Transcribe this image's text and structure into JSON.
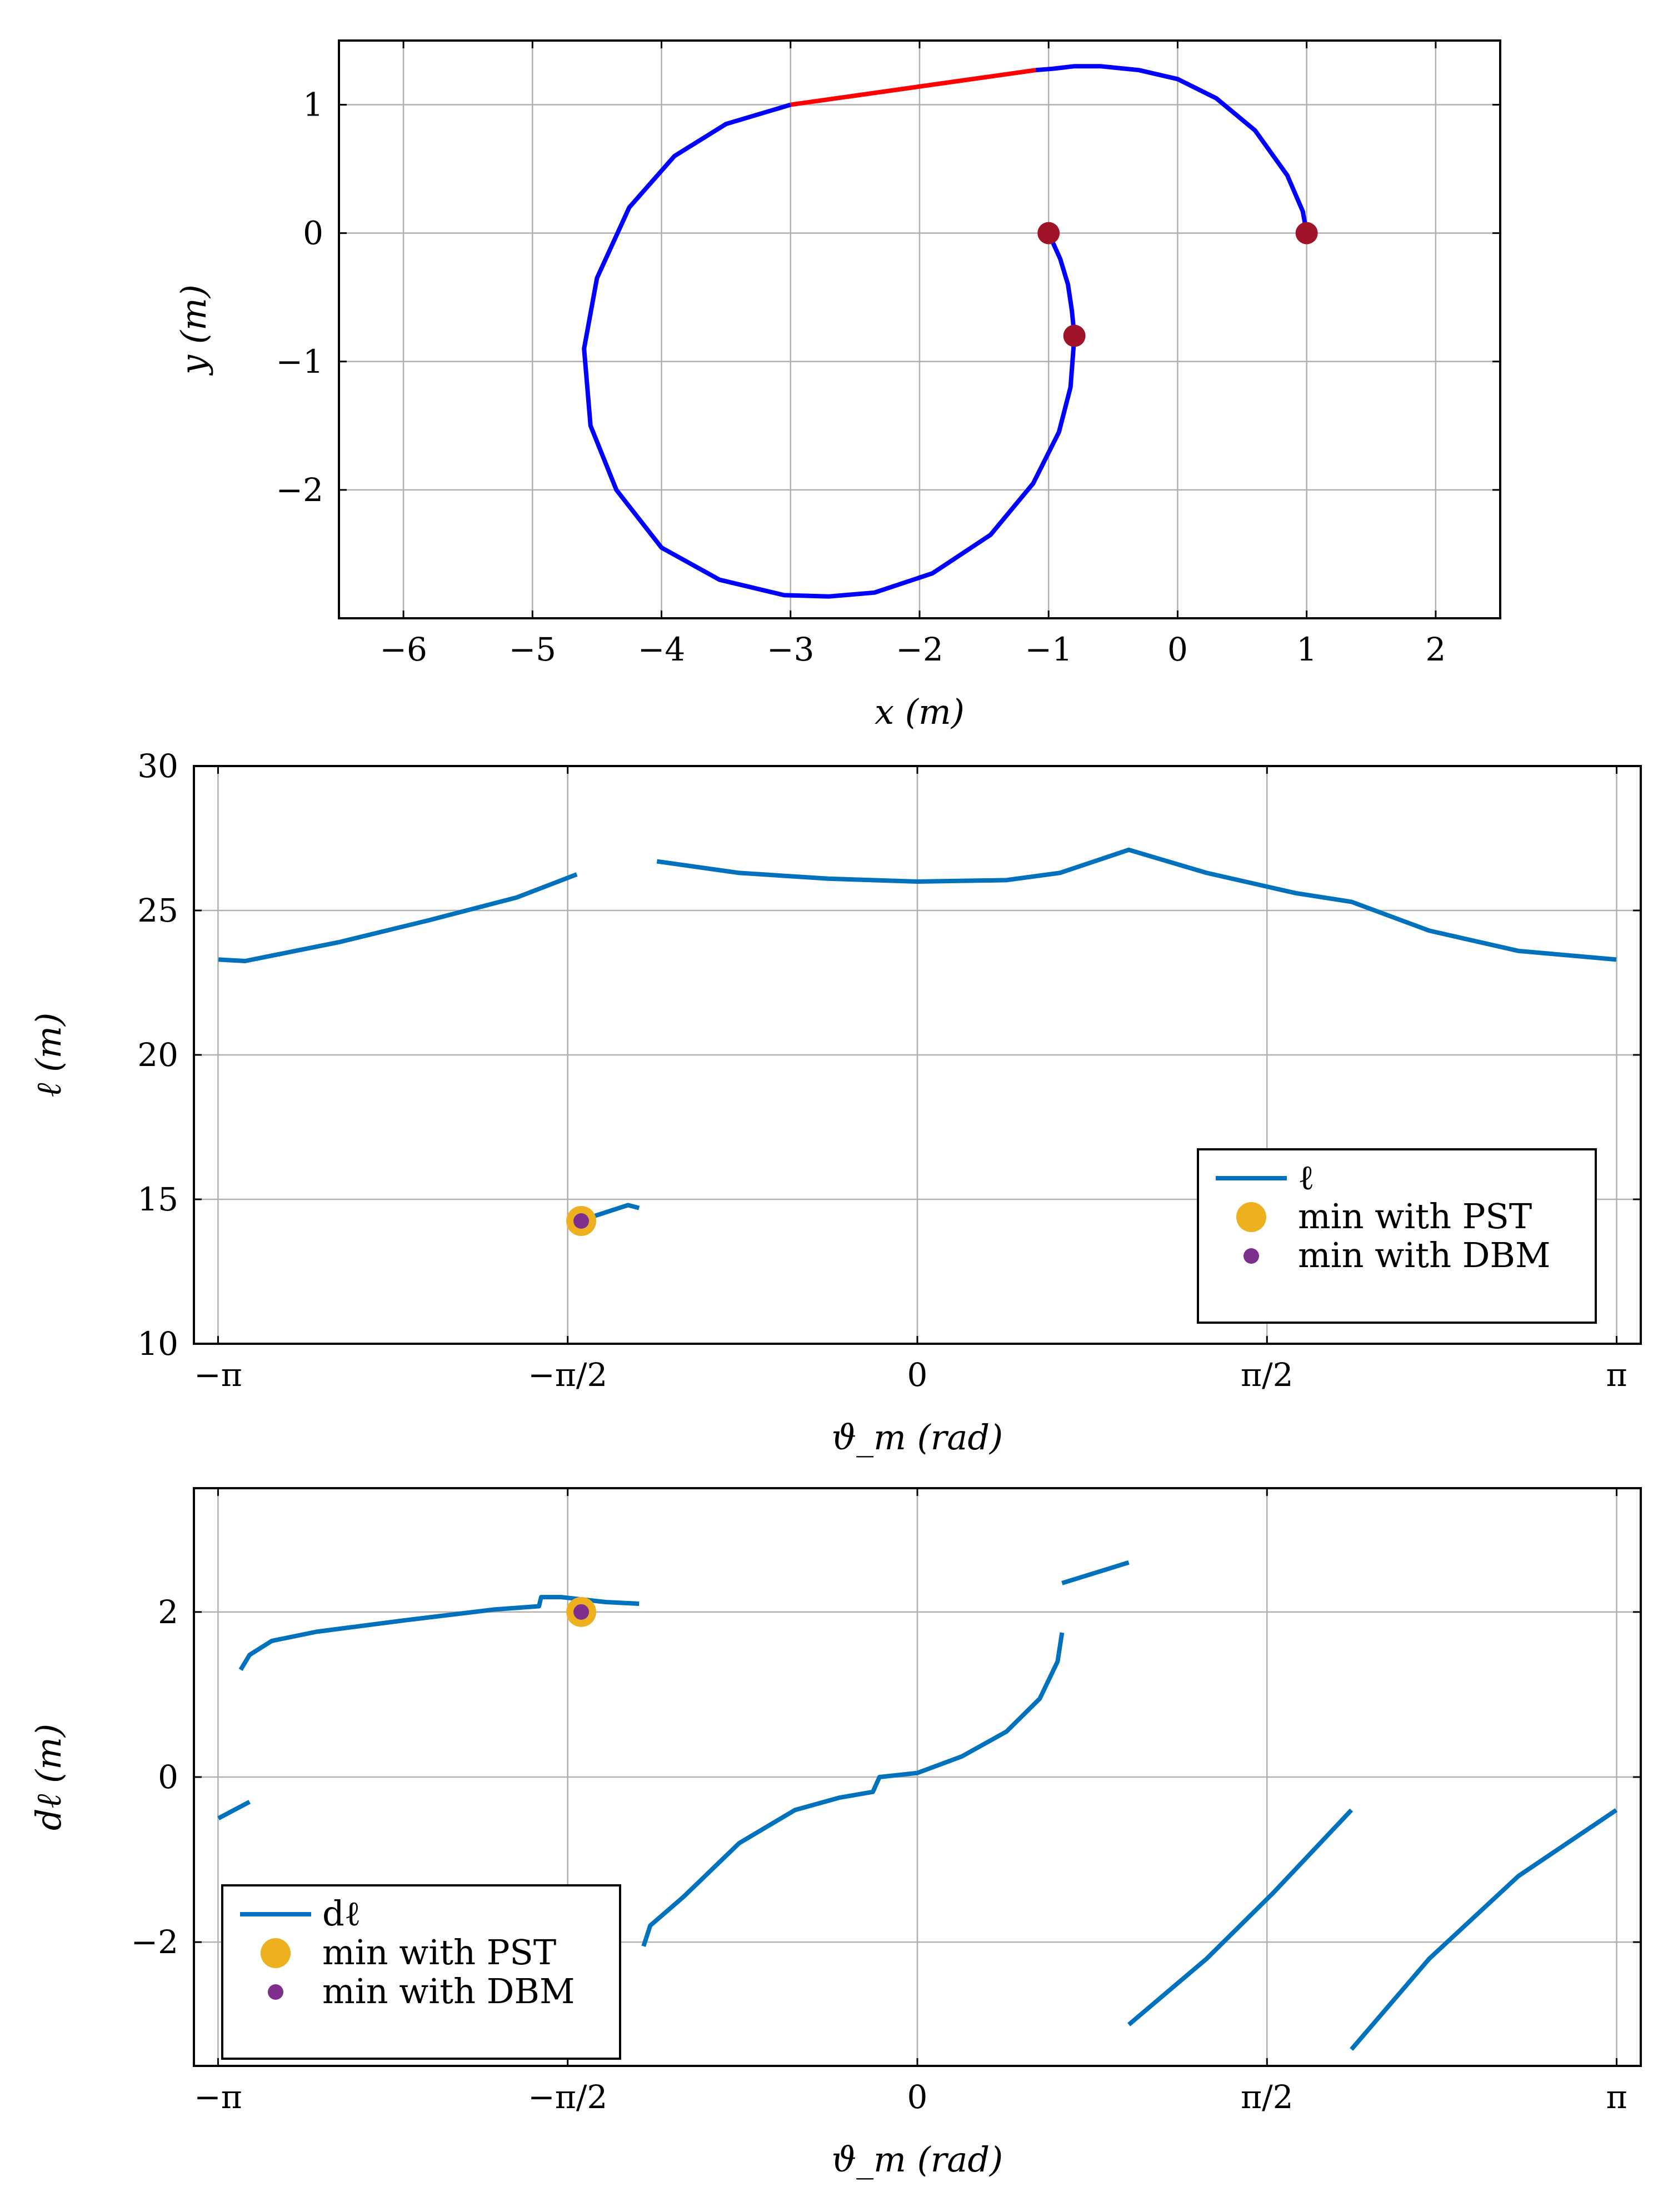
{
  "chart_data": [
    {
      "type": "line",
      "id": "path",
      "xlabel": "x (m)",
      "ylabel": "y (m)",
      "xlim": [
        -6.5,
        2.5
      ],
      "ylim": [
        -3.0,
        1.5
      ],
      "xticks": [
        -6,
        -5,
        -4,
        -3,
        -2,
        -1,
        0,
        1,
        2
      ],
      "xtick_labels": [
        "−6",
        "−5",
        "−4",
        "−3",
        "−2",
        "−1",
        "0",
        "1",
        "2"
      ],
      "yticks": [
        -2,
        -1,
        0,
        1
      ],
      "ytick_labels": [
        "−2",
        "−1",
        "0",
        "1"
      ],
      "grid": true,
      "colors": {
        "arc": "#0000ff",
        "segment": "#ff0000",
        "point": "#a0142a"
      },
      "series": [
        {
          "name": "arc1",
          "color": "#0000ff",
          "x": [
            1.0,
            0.97,
            0.85,
            0.6,
            0.3,
            0.0,
            -0.3,
            -0.6,
            -0.8,
            -0.97,
            -1.1
          ],
          "y": [
            0.0,
            0.17,
            0.45,
            0.8,
            1.05,
            1.2,
            1.27,
            1.3,
            1.3,
            1.28,
            1.27
          ]
        },
        {
          "name": "straight",
          "color": "#ff0000",
          "x": [
            -1.1,
            -3.0
          ],
          "y": [
            1.27,
            1.0
          ]
        },
        {
          "name": "arc2",
          "color": "#0000ff",
          "x": [
            -3.0,
            -3.5,
            -3.9,
            -4.25,
            -4.5,
            -4.6,
            -4.55,
            -4.35,
            -4.0,
            -3.55,
            -3.05,
            -2.7,
            -2.35,
            -1.9,
            -1.45,
            -1.12,
            -0.92,
            -0.83,
            -0.8,
            -0.82,
            -0.85,
            -0.91,
            -1.0
          ],
          "y": [
            1.0,
            0.85,
            0.6,
            0.2,
            -0.35,
            -0.9,
            -1.5,
            -2.0,
            -2.45,
            -2.7,
            -2.82,
            -2.83,
            -2.8,
            -2.65,
            -2.35,
            -1.95,
            -1.55,
            -1.2,
            -0.8,
            -0.6,
            -0.4,
            -0.2,
            0.0
          ]
        }
      ],
      "points": [
        {
          "x": 1.0,
          "y": 0.0
        },
        {
          "x": -1.0,
          "y": 0.0
        },
        {
          "x": -0.8,
          "y": -0.8
        }
      ]
    },
    {
      "type": "line",
      "id": "ell",
      "xlabel": "ϑ_m (rad)",
      "ylabel": "ℓ (m)",
      "xlim": [
        -3.25,
        3.25
      ],
      "ylim": [
        10,
        30
      ],
      "xticks": [
        -3.14159,
        -1.5708,
        0,
        1.5708,
        3.14159
      ],
      "xtick_labels": [
        "−π",
        "−π/2",
        "0",
        "π/2",
        "π"
      ],
      "yticks": [
        10,
        15,
        20,
        25,
        30
      ],
      "ytick_labels": [
        "10",
        "15",
        "20",
        "25",
        "30"
      ],
      "grid": true,
      "color": "#0072bd",
      "segments": [
        {
          "x": [
            -3.14,
            -3.02,
            -2.6,
            -2.2,
            -1.8,
            -1.53
          ],
          "y": [
            23.3,
            23.25,
            23.9,
            24.65,
            25.45,
            26.25
          ]
        },
        {
          "x": [
            -1.5,
            -1.3,
            -1.25
          ],
          "y": [
            14.3,
            14.8,
            14.7
          ]
        },
        {
          "x": [
            -1.17,
            -0.8,
            -0.4,
            0.0,
            0.4,
            0.64,
            0.95,
            1.3,
            1.7,
            1.95,
            2.3,
            2.7,
            3.14
          ],
          "y": [
            26.7,
            26.3,
            26.1,
            26.0,
            26.05,
            26.3,
            27.1,
            26.3,
            25.6,
            25.3,
            24.3,
            23.6,
            23.3
          ]
        }
      ],
      "pst_point": {
        "x": -1.51,
        "y": 14.25
      },
      "dbm_point": {
        "x": -1.51,
        "y": 14.25
      },
      "legend": {
        "position": "bottom-right",
        "entries": [
          "ℓ",
          "min with PST",
          "min with DBM"
        ]
      }
    },
    {
      "type": "line",
      "id": "dell",
      "xlabel": "ϑ_m (rad)",
      "ylabel": "dℓ (m)",
      "xlim": [
        -3.25,
        3.25
      ],
      "ylim": [
        -3.5,
        3.5
      ],
      "xticks": [
        -3.14159,
        -1.5708,
        0,
        1.5708,
        3.14159
      ],
      "xtick_labels": [
        "−π",
        "−π/2",
        "0",
        "π/2",
        "π"
      ],
      "yticks": [
        -2,
        0,
        2
      ],
      "ytick_labels": [
        "−2",
        "0",
        "2"
      ],
      "grid": true,
      "color": "#0072bd",
      "segments": [
        {
          "x": [
            -3.14,
            -3.0
          ],
          "y": [
            -0.5,
            -0.3
          ]
        },
        {
          "x": [
            -3.04,
            -3.0,
            -2.9,
            -2.7,
            -2.3,
            -1.9,
            -1.7,
            -1.69,
            -1.6,
            -1.4,
            -1.25
          ],
          "y": [
            1.3,
            1.48,
            1.65,
            1.76,
            1.9,
            2.03,
            2.07,
            2.18,
            2.18,
            2.12,
            2.1
          ]
        },
        {
          "x": [
            -1.23,
            -1.2,
            -1.05,
            -0.8,
            -0.55,
            -0.35,
            -0.2,
            -0.17,
            -0.1,
            0.0,
            0.2,
            0.4,
            0.55,
            0.63,
            0.65
          ],
          "y": [
            -2.05,
            -1.8,
            -1.45,
            -0.8,
            -0.4,
            -0.25,
            -0.18,
            0.0,
            0.02,
            0.05,
            0.25,
            0.55,
            0.95,
            1.4,
            1.75
          ]
        },
        {
          "x": [
            0.65,
            0.95
          ],
          "y": [
            2.35,
            2.6
          ]
        },
        {
          "x": [
            0.95,
            1.3,
            1.6,
            1.95
          ],
          "y": [
            -3.0,
            -2.2,
            -1.4,
            -0.4
          ]
        },
        {
          "x": [
            1.95,
            2.3,
            2.7,
            3.14
          ],
          "y": [
            -3.3,
            -2.2,
            -1.2,
            -0.4
          ]
        }
      ],
      "pst_point": {
        "x": -1.51,
        "y": 2.0
      },
      "dbm_point": {
        "x": -1.51,
        "y": 2.0
      },
      "legend": {
        "position": "bottom-left",
        "entries": [
          "dℓ",
          "min with PST",
          "min with DBM"
        ]
      }
    }
  ],
  "colors": {
    "pst": "#edb120",
    "dbm": "#7e2f8e",
    "line": "#0072bd",
    "grid": "#b0b0b0"
  }
}
